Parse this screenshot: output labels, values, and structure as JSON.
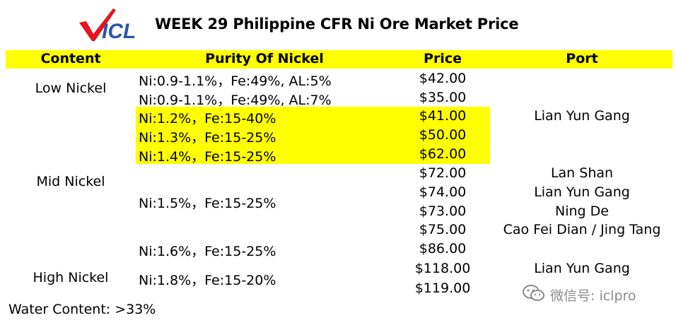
{
  "header": {
    "logo_text": "ICL",
    "title": "WEEK 29 Philippine CFR Ni Ore Market Price"
  },
  "table": {
    "columns": [
      "Content",
      "Purity Of Nickel",
      "Price",
      "Port"
    ],
    "groups": {
      "low": "Low Nickel",
      "mid": "Mid Nickel",
      "high": "High Nickel"
    },
    "rows": [
      {
        "purity": "Ni:0.9-1.1%，Fe:49%, AL:5%",
        "price": "$42.00"
      },
      {
        "purity": "Ni:0.9-1.1%，Fe:49%, AL:7%",
        "price": "$35.00"
      },
      {
        "purity": "Ni:1.2%，Fe:15-40%",
        "price": "$41.00"
      },
      {
        "purity": "Ni:1.3%，Fe:15-25%",
        "price": "$50.00"
      },
      {
        "purity": "Ni:1.4%，Fe:15-25%",
        "price": "$62.00"
      },
      {
        "purity": "Ni:1.5%，Fe:15-25%",
        "prices": [
          "$72.00",
          "$74.00",
          "$73.00",
          "$75.00"
        ]
      },
      {
        "purity": "Ni:1.6%，Fe:15-25%",
        "price": "$86.00"
      },
      {
        "purity": "Ni:1.8%，Fe:15-20%",
        "prices": [
          "$118.00",
          "$119.00"
        ]
      }
    ],
    "ports": [
      "Lian Yun Gang",
      "Lan Shan",
      "Lian Yun Gang",
      "Ning De",
      "Cao Fei Dian / Jing Tang",
      "Lian Yun Gang"
    ],
    "highlight_color": "#ffff00"
  },
  "footer": {
    "water_content": "Water Content: >33%",
    "wechat": "微信号: iclpro"
  }
}
